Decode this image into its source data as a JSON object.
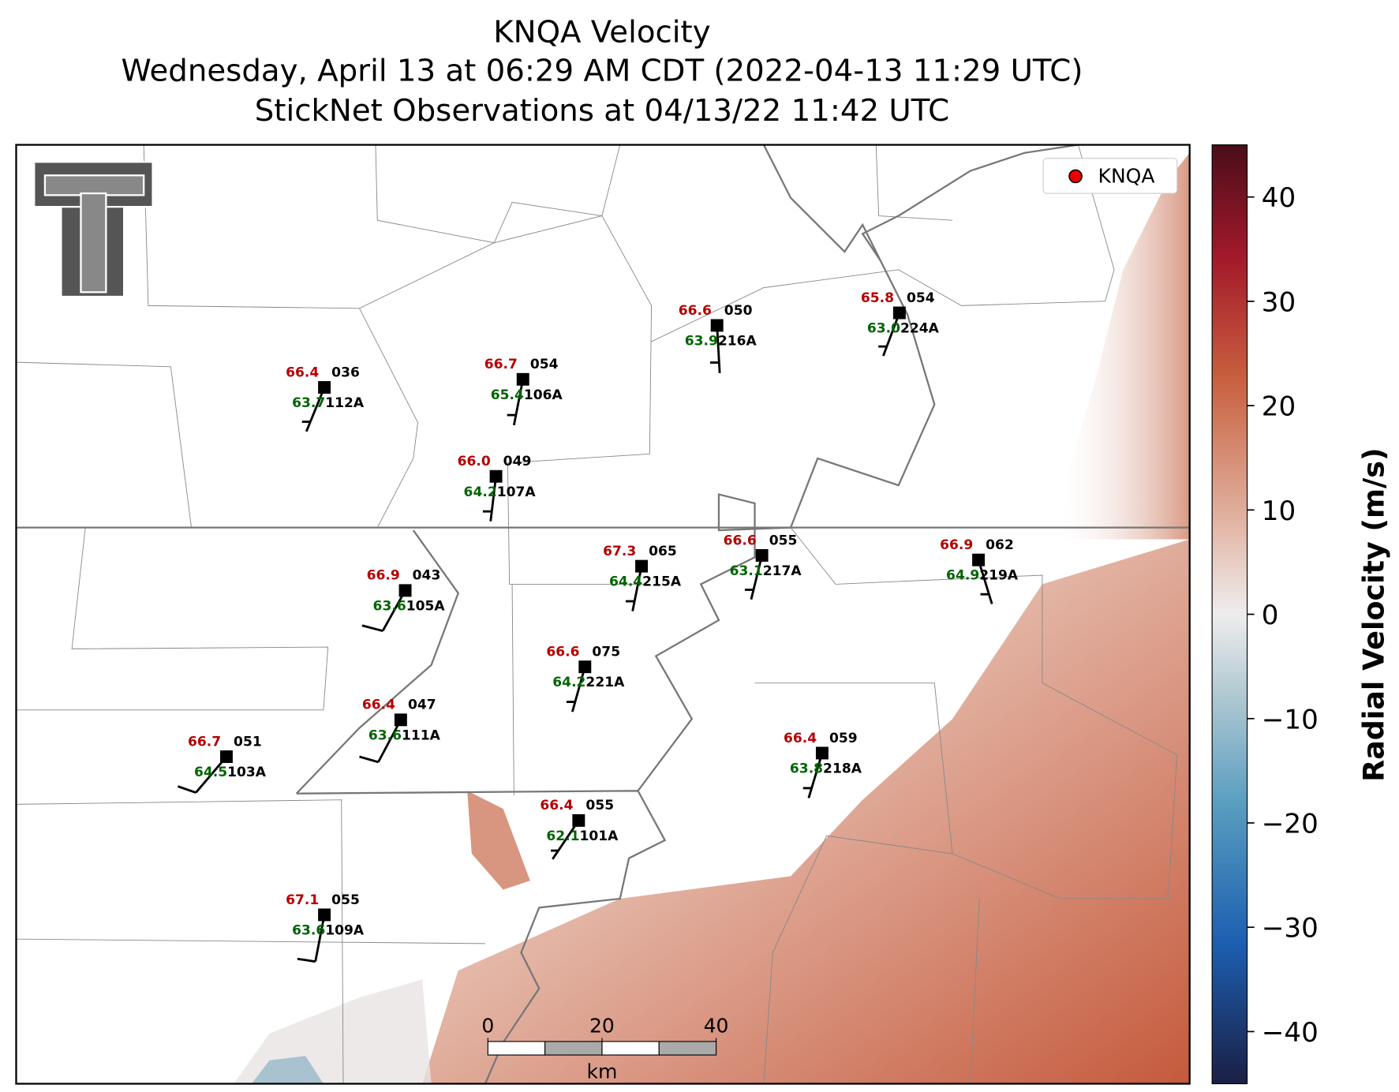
{
  "title": [
    "KNQA Velocity",
    "Wednesday, April 13 at 06:29 AM CDT (2022-04-13 11:29 UTC)",
    "StickNet Observations at 04/13/22 11:42 UTC"
  ],
  "legend": {
    "label": "KNQA"
  },
  "stations": [
    {
      "id": "112A",
      "temp": "66.4",
      "code": "036",
      "dew": "63.7"
    },
    {
      "id": "106A",
      "temp": "66.7",
      "code": "054",
      "dew": "65.4"
    },
    {
      "id": "216A",
      "temp": "66.6",
      "code": "050",
      "dew": "63.9"
    },
    {
      "id": "224A",
      "temp": "65.8",
      "code": "054",
      "dew": "63.0"
    },
    {
      "id": "107A",
      "temp": "66.0",
      "code": "049",
      "dew": "64.2"
    },
    {
      "id": "105A",
      "temp": "66.9",
      "code": "043",
      "dew": "63.6"
    },
    {
      "id": "215A",
      "temp": "67.3",
      "code": "065",
      "dew": "64.4"
    },
    {
      "id": "217A",
      "temp": "66.6",
      "code": "055",
      "dew": "63.1"
    },
    {
      "id": "219A",
      "temp": "66.9",
      "code": "062",
      "dew": "64.9"
    },
    {
      "id": "221A",
      "temp": "66.6",
      "code": "075",
      "dew": "64.2"
    },
    {
      "id": "111A",
      "temp": "66.4",
      "code": "047",
      "dew": "63.6"
    },
    {
      "id": "103A",
      "temp": "66.7",
      "code": "051",
      "dew": "64.5"
    },
    {
      "id": "218A",
      "temp": "66.4",
      "code": "059",
      "dew": "63.8"
    },
    {
      "id": "101A",
      "temp": "66.4",
      "code": "055",
      "dew": "62.1"
    },
    {
      "id": "109A",
      "temp": "67.1",
      "code": "055",
      "dew": "63.6"
    }
  ],
  "colorbar": {
    "label": "Radial Velocity (m/s)",
    "ylim": [
      -45,
      45
    ],
    "ticks": [
      40,
      30,
      20,
      10,
      0,
      {
        "value": -10,
        "label": "−10"
      },
      {
        "value": -20,
        "label": "−20"
      },
      {
        "value": -30,
        "label": "−30"
      },
      {
        "value": -40,
        "label": "−40"
      }
    ]
  },
  "scale_bar": {
    "ticks": [
      0,
      20,
      40
    ],
    "unit": "km"
  }
}
